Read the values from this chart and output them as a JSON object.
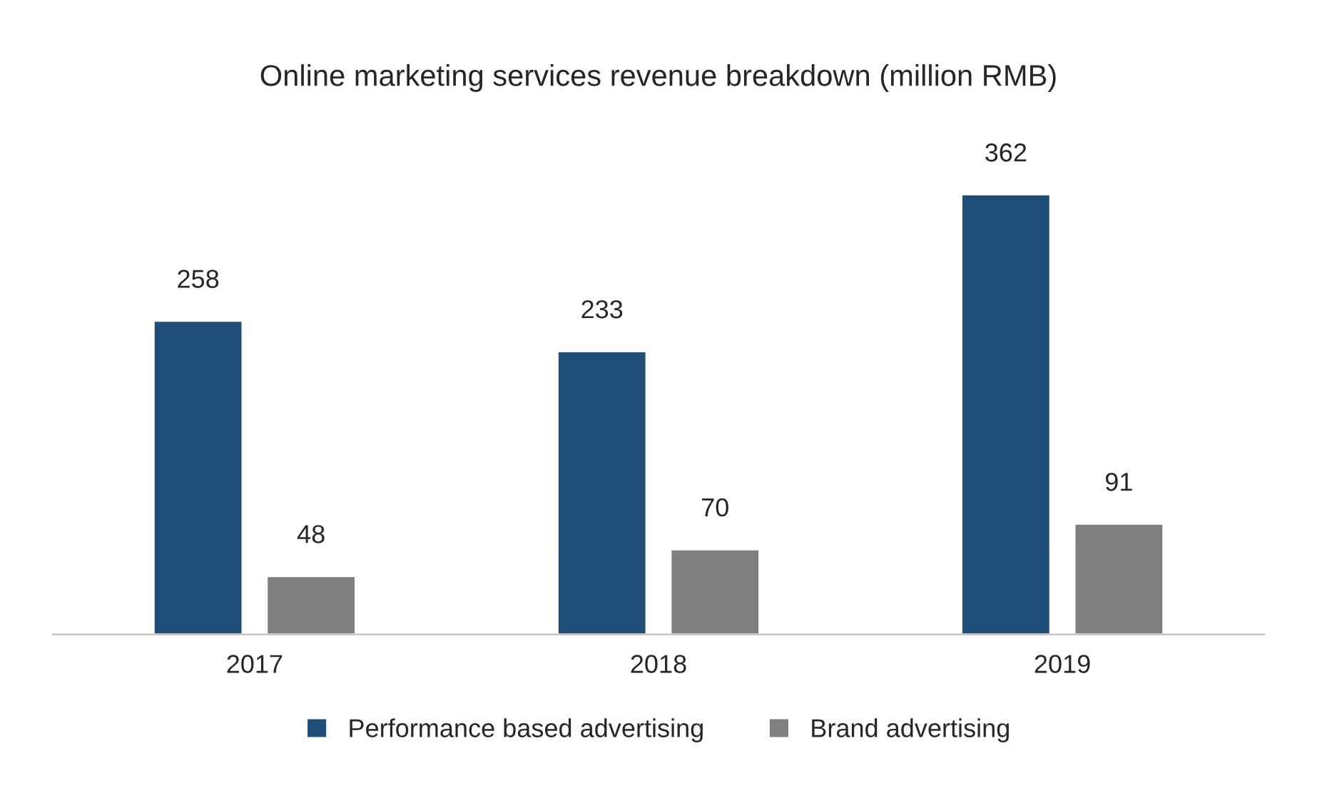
{
  "chart_data": {
    "type": "bar",
    "title": "Online marketing services revenue breakdown (million RMB)",
    "categories": [
      "2017",
      "2018",
      "2019"
    ],
    "series": [
      {
        "name": "Performance based advertising",
        "color": "#1f4e79",
        "values": [
          258,
          233,
          362
        ]
      },
      {
        "name": "Brand advertising",
        "color": "#7f7f7f",
        "values": [
          48,
          70,
          91
        ]
      }
    ],
    "data_labels": true,
    "legend": "bottom",
    "grid": false,
    "tick_labels": "x"
  }
}
